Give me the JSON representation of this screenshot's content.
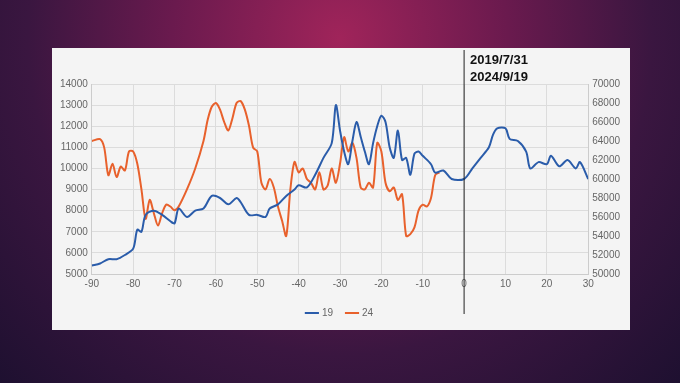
{
  "chart_data": {
    "type": "line",
    "xlim": [
      -90,
      30
    ],
    "xticks": [
      -90,
      -80,
      -70,
      -60,
      -50,
      -40,
      -30,
      -20,
      -10,
      0,
      10,
      20,
      30
    ],
    "ylim": [
      5000,
      14000
    ],
    "yticks": [
      5000,
      6000,
      7000,
      8000,
      9000,
      10000,
      11000,
      12000,
      13000,
      14000
    ],
    "y2lim": [
      50000,
      70000
    ],
    "y2ticks": [
      50000,
      52000,
      54000,
      56000,
      58000,
      60000,
      62000,
      64000,
      66000,
      68000,
      70000
    ],
    "grid": true,
    "legend": "bottom",
    "annotations": [
      {
        "x": 0,
        "text": [
          "2019/7/31",
          "2024/9/19"
        ]
      }
    ],
    "series": [
      {
        "name": "19",
        "color": "#2a5caa",
        "x": [
          -90,
          -88,
          -86,
          -84,
          -82,
          -80,
          -79,
          -78,
          -77,
          -75,
          -73,
          -71,
          -70,
          -69,
          -67,
          -65,
          -63,
          -61,
          -59,
          -57,
          -55,
          -54,
          -52,
          -50,
          -48,
          -47,
          -45,
          -43,
          -41,
          -40,
          -38,
          -36,
          -34,
          -32,
          -31,
          -30,
          -29,
          -28,
          -27,
          -26,
          -25,
          -24,
          -23,
          -22,
          -21,
          -20,
          -19,
          -18,
          -17,
          -16,
          -15,
          -14,
          -13,
          -12,
          -11,
          -10,
          -8,
          -7,
          -5,
          -3,
          0,
          2,
          4,
          6,
          7,
          8,
          10,
          11,
          13,
          15,
          16,
          18,
          20,
          21,
          23,
          25,
          27,
          28,
          30
        ],
        "values": [
          5400,
          5500,
          5700,
          5700,
          5900,
          6200,
          7100,
          7000,
          7800,
          8000,
          7800,
          7500,
          7400,
          8100,
          7700,
          8000,
          8100,
          8700,
          8600,
          8300,
          8600,
          8400,
          7800,
          7800,
          7700,
          8100,
          8300,
          8700,
          9000,
          9200,
          9100,
          9700,
          10500,
          11200,
          13000,
          11800,
          10800,
          10200,
          11300,
          12200,
          11500,
          10800,
          10200,
          11200,
          12000,
          12500,
          12200,
          11000,
          10500,
          11800,
          10400,
          10500,
          9700,
          10700,
          10800,
          10600,
          10200,
          9800,
          9900,
          9500,
          9500,
          10000,
          10500,
          11000,
          11600,
          11900,
          11900,
          11400,
          11300,
          10800,
          10000,
          10300,
          10200,
          10600,
          10100,
          10400,
          10000,
          10300,
          9500
        ]
      },
      {
        "name": "24",
        "color": "#e8612c",
        "axis": "y2",
        "x": [
          -90,
          -88,
          -87,
          -86,
          -85,
          -84,
          -83,
          -82,
          -81,
          -80,
          -79,
          -78,
          -77,
          -76,
          -75,
          -74,
          -73,
          -72,
          -71,
          -70,
          -69,
          -67,
          -65,
          -63,
          -62,
          -61,
          -60,
          -59,
          -58,
          -57,
          -56,
          -55,
          -54,
          -53,
          -52,
          -51,
          -50,
          -49,
          -48,
          -47,
          -46,
          -45,
          -44,
          -43,
          -42,
          -41,
          -40,
          -39,
          -38,
          -37,
          -36,
          -35,
          -34,
          -33,
          -32,
          -31,
          -30,
          -29,
          -28,
          -27,
          -26,
          -25,
          -24,
          -23,
          -22,
          -21,
          -20,
          -19,
          -18,
          -17,
          -16,
          -15,
          -14,
          -13,
          -12,
          -11,
          -10,
          -9,
          -8,
          -7,
          -6
        ],
        "values": [
          64000,
          64200,
          63300,
          60400,
          61600,
          60200,
          61300,
          60900,
          62900,
          62900,
          61600,
          58900,
          55800,
          57800,
          56400,
          55100,
          56400,
          57300,
          57100,
          56700,
          57100,
          58900,
          61100,
          64000,
          66200,
          67600,
          68000,
          67300,
          66000,
          65100,
          66400,
          68000,
          68200,
          67300,
          65600,
          63300,
          62900,
          59600,
          58900,
          60000,
          59100,
          57100,
          55600,
          54000,
          58900,
          61800,
          60700,
          61100,
          60000,
          59600,
          58900,
          60700,
          58900,
          59300,
          61100,
          59600,
          61600,
          64400,
          62900,
          63800,
          62200,
          59100,
          58900,
          59600,
          59100,
          63800,
          62900,
          59600,
          58700,
          59100,
          57800,
          58400,
          54000,
          54200,
          54900,
          56700,
          57300,
          57100,
          58000,
          60400,
          60700
        ]
      }
    ]
  }
}
